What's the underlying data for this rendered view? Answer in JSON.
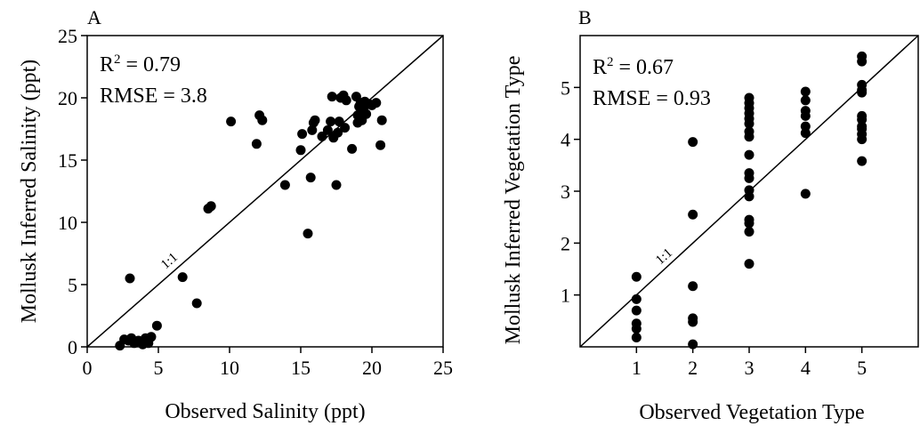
{
  "chart_data": [
    {
      "type": "scatter",
      "panel_label": "A",
      "xlabel": "Observed Salinity (ppt)",
      "ylabel": "Mollusk Inferred Salinity (ppt)",
      "xlim": [
        0,
        25
      ],
      "ylim": [
        0,
        25
      ],
      "xticks": [
        0,
        5,
        10,
        15,
        20,
        25
      ],
      "yticks": [
        0,
        5,
        10,
        15,
        20,
        25
      ],
      "annotations": {
        "r2_prefix": "R",
        "r2_sup": "2",
        "r2_value": " = 0.79",
        "rmse": "RMSE = 3.8",
        "line_label": "1:1"
      },
      "reference_line": "1:1",
      "grid": false,
      "points": [
        [
          2.3,
          0.1
        ],
        [
          2.6,
          0.6
        ],
        [
          2.9,
          0.5
        ],
        [
          3.1,
          0.7
        ],
        [
          3.3,
          0.3
        ],
        [
          3.6,
          0.5
        ],
        [
          3.9,
          0.2
        ],
        [
          4.1,
          0.7
        ],
        [
          4.3,
          0.3
        ],
        [
          4.5,
          0.8
        ],
        [
          3.0,
          5.5
        ],
        [
          4.9,
          1.7
        ],
        [
          6.7,
          5.6
        ],
        [
          7.7,
          3.5
        ],
        [
          8.5,
          11.1
        ],
        [
          8.7,
          11.3
        ],
        [
          10.1,
          18.1
        ],
        [
          11.9,
          16.3
        ],
        [
          12.1,
          18.6
        ],
        [
          12.3,
          18.2
        ],
        [
          13.9,
          13.0
        ],
        [
          15.0,
          15.8
        ],
        [
          15.1,
          17.1
        ],
        [
          15.5,
          9.1
        ],
        [
          15.7,
          13.6
        ],
        [
          15.8,
          17.4
        ],
        [
          15.9,
          18.0
        ],
        [
          16.0,
          18.2
        ],
        [
          16.5,
          16.9
        ],
        [
          16.9,
          17.4
        ],
        [
          17.1,
          18.1
        ],
        [
          17.2,
          20.1
        ],
        [
          17.3,
          16.8
        ],
        [
          17.5,
          13.0
        ],
        [
          17.6,
          17.2
        ],
        [
          17.7,
          18.1
        ],
        [
          17.8,
          20.0
        ],
        [
          18.0,
          20.2
        ],
        [
          18.1,
          17.6
        ],
        [
          18.2,
          19.8
        ],
        [
          18.6,
          15.9
        ],
        [
          18.9,
          20.1
        ],
        [
          19.0,
          18.0
        ],
        [
          19.0,
          18.6
        ],
        [
          19.1,
          19.3
        ],
        [
          19.2,
          19.6
        ],
        [
          19.3,
          18.2
        ],
        [
          19.4,
          19.1
        ],
        [
          19.5,
          19.7
        ],
        [
          19.6,
          18.7
        ],
        [
          19.8,
          19.5
        ],
        [
          20.0,
          19.4
        ],
        [
          20.3,
          19.6
        ],
        [
          20.6,
          16.2
        ],
        [
          20.7,
          18.2
        ]
      ]
    },
    {
      "type": "scatter",
      "panel_label": "B",
      "xlabel": "Observed Vegetation Type",
      "ylabel": "Mollusk Inferred Vegetation Type",
      "xlim": [
        0,
        6
      ],
      "ylim": [
        0,
        6
      ],
      "xticks": [
        1,
        2,
        3,
        4,
        5
      ],
      "yticks": [
        1,
        2,
        3,
        4,
        5
      ],
      "annotations": {
        "r2_prefix": "R",
        "r2_sup": "2",
        "r2_value": " = 0.67",
        "rmse": "RMSE = 0.93",
        "line_label": "1:1"
      },
      "reference_line": "1:1",
      "grid": false,
      "points": [
        [
          1,
          1.35
        ],
        [
          1,
          0.92
        ],
        [
          1,
          0.7
        ],
        [
          1,
          0.45
        ],
        [
          1,
          0.35
        ],
        [
          1,
          0.18
        ],
        [
          2,
          3.95
        ],
        [
          2,
          2.55
        ],
        [
          2,
          1.17
        ],
        [
          2,
          0.55
        ],
        [
          2,
          0.48
        ],
        [
          2,
          0.05
        ],
        [
          3,
          4.8
        ],
        [
          3,
          4.7
        ],
        [
          3,
          4.6
        ],
        [
          3,
          4.5
        ],
        [
          3,
          4.4
        ],
        [
          3,
          4.3
        ],
        [
          3,
          4.15
        ],
        [
          3,
          4.05
        ],
        [
          3,
          3.7
        ],
        [
          3,
          3.35
        ],
        [
          3,
          3.25
        ],
        [
          3,
          3.02
        ],
        [
          3,
          2.9
        ],
        [
          3,
          2.45
        ],
        [
          3,
          2.38
        ],
        [
          3,
          2.22
        ],
        [
          3,
          1.6
        ],
        [
          4,
          4.92
        ],
        [
          4,
          4.75
        ],
        [
          4,
          4.55
        ],
        [
          4,
          4.45
        ],
        [
          4,
          4.25
        ],
        [
          4,
          4.12
        ],
        [
          4,
          2.95
        ],
        [
          5,
          5.6
        ],
        [
          5,
          5.5
        ],
        [
          5,
          5.05
        ],
        [
          5,
          4.95
        ],
        [
          5,
          4.9
        ],
        [
          5,
          4.45
        ],
        [
          5,
          4.38
        ],
        [
          5,
          4.25
        ],
        [
          5,
          4.2
        ],
        [
          5,
          4.1
        ],
        [
          5,
          4.0
        ],
        [
          5,
          3.58
        ]
      ]
    }
  ]
}
